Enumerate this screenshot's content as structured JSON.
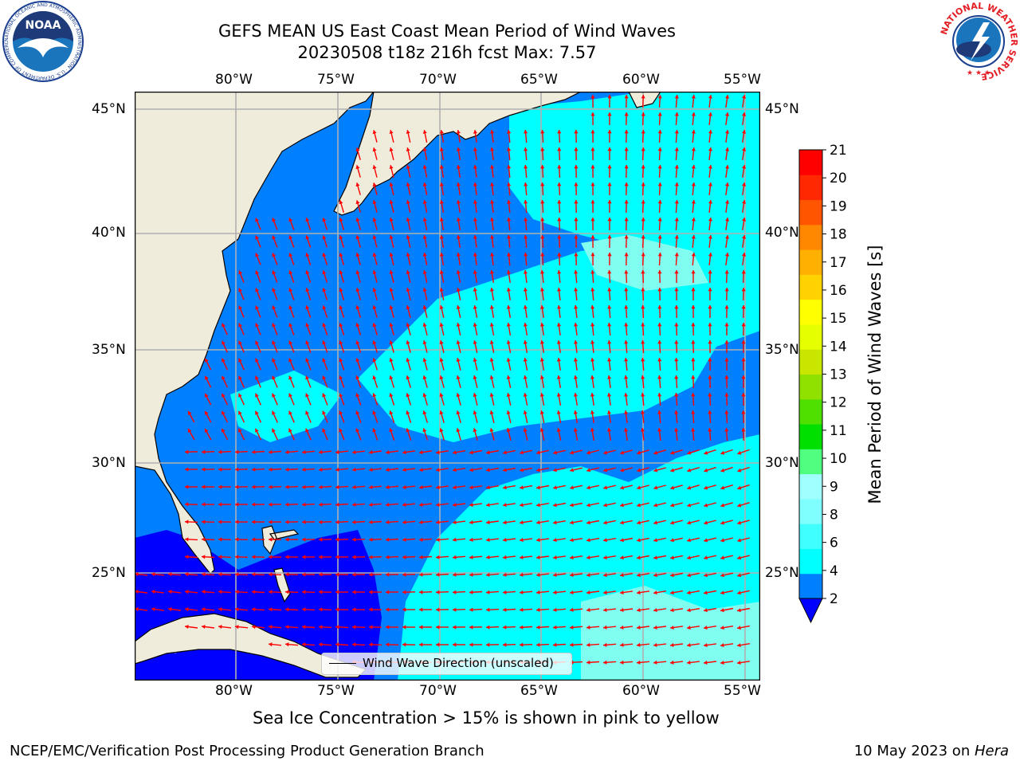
{
  "title": {
    "line1": "GEFS MEAN US East Coast Mean Period of Wind Waves",
    "line2": "20230508 t18z 216h fcst   Max: 7.57"
  },
  "map": {
    "lon_labels": [
      "80°W",
      "75°W",
      "70°W",
      "65°W",
      "60°W",
      "55°W"
    ],
    "lat_labels": [
      "45°N",
      "40°N",
      "35°N",
      "30°N",
      "25°N"
    ],
    "legend": "Wind Wave Direction (unscaled)",
    "colors": {
      "land": "#efecdc",
      "gridline": "#b0b0b0",
      "arrow": "#ff0000",
      "period_lt2": "#0000ff",
      "period_2_4": "#0080ff",
      "period_4_6": "#00ffff",
      "period_6_8": "#80fff0"
    }
  },
  "colorbar": {
    "label": "Mean Period of Wind Waves [s]",
    "ticks": [
      "2",
      "4",
      "6",
      "8",
      "9",
      "10",
      "11",
      "12",
      "13",
      "14",
      "15",
      "16",
      "17",
      "18",
      "19",
      "20",
      "21"
    ],
    "colors": [
      "#0080ff",
      "#00ffff",
      "#40ffff",
      "#80ffff",
      "#a0ffff",
      "#50ff80",
      "#00e000",
      "#50e000",
      "#90e000",
      "#c8e600",
      "#e6ff00",
      "#ffff00",
      "#ffd200",
      "#ffb000",
      "#ff8800",
      "#ff5500",
      "#ff2800",
      "#ff0000"
    ],
    "extend_min_color": "#0000ff"
  },
  "footnote": "Sea Ice Concentration > 15% is shown in pink to yellow",
  "footer": {
    "left": "NCEP/EMC/Verification Post Processing Product Generation Branch",
    "right_prefix": "10 May 2023 on ",
    "right_machine": "Hera"
  },
  "logos": {
    "noaa_text": "NOAA",
    "noaa_ring": "NATIONAL OCEANIC AND ATMOSPHERIC ADMINISTRATION · U.S. DEPARTMENT OF COMMERCE",
    "nws_ring": "NATIONAL WEATHER SERVICE"
  }
}
